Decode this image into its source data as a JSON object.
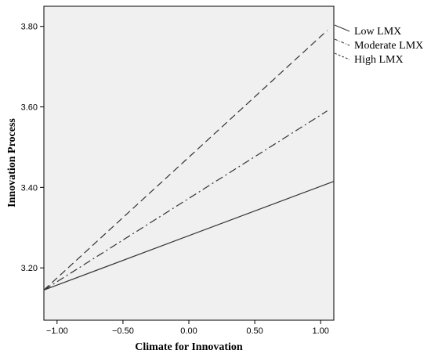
{
  "chart_data": {
    "type": "line",
    "xlabel": "Climate for Innovation",
    "ylabel": "Innovation Process",
    "xlim": [
      -1.1,
      1.1
    ],
    "ylim": [
      3.07,
      3.85
    ],
    "xticks": [
      -1.0,
      -0.5,
      0.0,
      0.5,
      1.0
    ],
    "xtick_labels": [
      "−1.00",
      "−0.50",
      "0.00",
      "0.50",
      "1.00"
    ],
    "yticks": [
      3.2,
      3.4,
      3.6,
      3.8
    ],
    "ytick_labels": [
      "3.20",
      "3.40",
      "3.60",
      "3.80"
    ],
    "background": "#f0f0f0",
    "grid": false,
    "legend_position": "right",
    "series": [
      {
        "name": "Low LMX",
        "style": "solid",
        "x": [
          -1.1,
          1.1
        ],
        "y": [
          3.145,
          3.415
        ]
      },
      {
        "name": "Moderate LMX",
        "style": "dashdot",
        "x": [
          -1.1,
          1.05
        ],
        "y": [
          3.145,
          3.59
        ]
      },
      {
        "name": "High LMX",
        "style": "dashed",
        "x": [
          -1.1,
          1.05
        ],
        "y": [
          3.145,
          3.79
        ]
      }
    ]
  }
}
